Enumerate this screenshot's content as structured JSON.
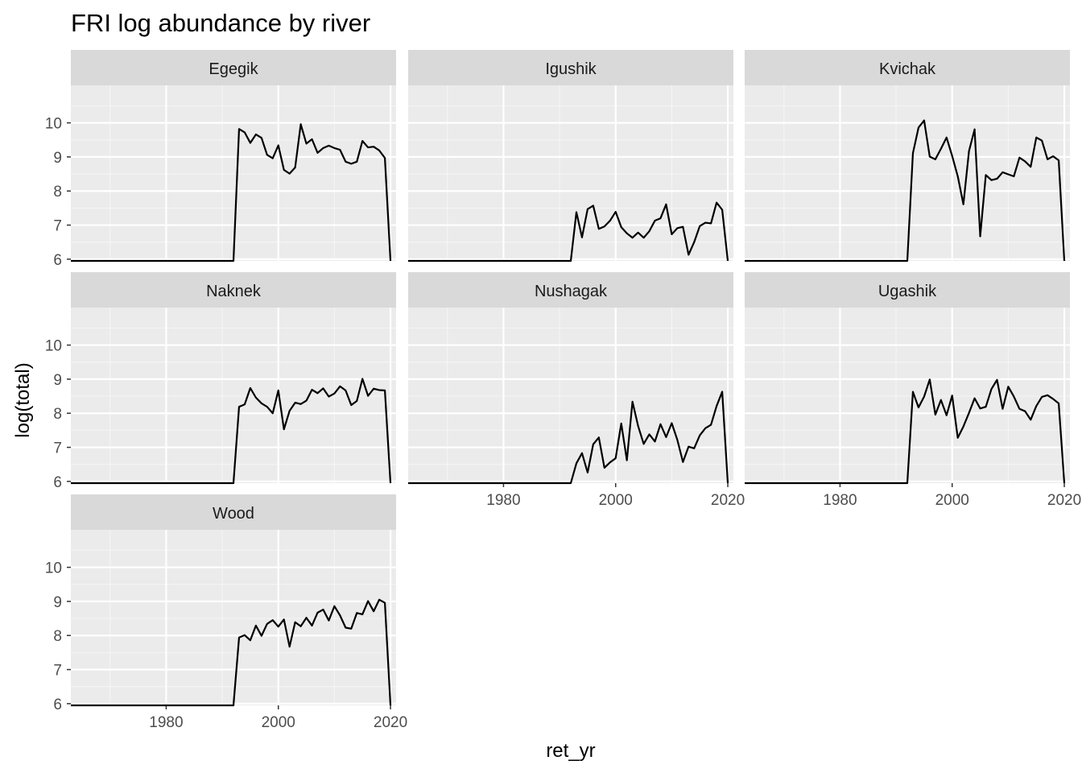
{
  "chart_data": {
    "type": "line",
    "title": "FRI log abundance by river",
    "xlabel": "ret_yr",
    "ylabel": "log(total)",
    "xlim": [
      1963,
      2021
    ],
    "ylim": [
      5.95,
      11.1
    ],
    "x_ticks": [
      1980,
      2000,
      2020
    ],
    "y_ticks": [
      6,
      7,
      8,
      9,
      10
    ],
    "grid": true,
    "line_color": "#000000",
    "panel_background": "#ebebeb",
    "strip_background": "#d9d9d9",
    "grid_color": "#ffffff",
    "panels": [
      {
        "name": "Egegik",
        "points": [
          [
            1963,
            5.95
          ],
          [
            1992,
            5.95
          ],
          [
            1993,
            9.82
          ],
          [
            1994,
            9.72
          ],
          [
            1995,
            9.41
          ],
          [
            1996,
            9.66
          ],
          [
            1997,
            9.56
          ],
          [
            1998,
            9.06
          ],
          [
            1999,
            8.96
          ],
          [
            2000,
            9.34
          ],
          [
            2001,
            8.62
          ],
          [
            2002,
            8.51
          ],
          [
            2003,
            8.69
          ],
          [
            2004,
            9.96
          ],
          [
            2005,
            9.39
          ],
          [
            2006,
            9.52
          ],
          [
            2007,
            9.12
          ],
          [
            2008,
            9.26
          ],
          [
            2009,
            9.33
          ],
          [
            2010,
            9.26
          ],
          [
            2011,
            9.21
          ],
          [
            2012,
            8.86
          ],
          [
            2013,
            8.8
          ],
          [
            2014,
            8.86
          ],
          [
            2015,
            9.47
          ],
          [
            2016,
            9.28
          ],
          [
            2017,
            9.3
          ],
          [
            2018,
            9.19
          ],
          [
            2019,
            8.97
          ],
          [
            2020,
            5.95
          ]
        ]
      },
      {
        "name": "Igushik",
        "points": [
          [
            1963,
            5.95
          ],
          [
            1992,
            5.95
          ],
          [
            1993,
            7.38
          ],
          [
            1994,
            6.64
          ],
          [
            1995,
            7.47
          ],
          [
            1996,
            7.57
          ],
          [
            1997,
            6.89
          ],
          [
            1998,
            6.96
          ],
          [
            1999,
            7.13
          ],
          [
            2000,
            7.39
          ],
          [
            2001,
            6.94
          ],
          [
            2002,
            6.76
          ],
          [
            2003,
            6.63
          ],
          [
            2004,
            6.78
          ],
          [
            2005,
            6.63
          ],
          [
            2006,
            6.82
          ],
          [
            2007,
            7.13
          ],
          [
            2008,
            7.2
          ],
          [
            2009,
            7.61
          ],
          [
            2010,
            6.73
          ],
          [
            2011,
            6.91
          ],
          [
            2012,
            6.95
          ],
          [
            2013,
            6.13
          ],
          [
            2014,
            6.5
          ],
          [
            2015,
            6.97
          ],
          [
            2016,
            7.07
          ],
          [
            2017,
            7.05
          ],
          [
            2018,
            7.66
          ],
          [
            2019,
            7.45
          ],
          [
            2020,
            5.95
          ]
        ]
      },
      {
        "name": "Kvichak",
        "points": [
          [
            1963,
            5.95
          ],
          [
            1992,
            5.95
          ],
          [
            1993,
            9.11
          ],
          [
            1994,
            9.86
          ],
          [
            1995,
            10.07
          ],
          [
            1996,
            9.01
          ],
          [
            1997,
            8.93
          ],
          [
            1998,
            9.24
          ],
          [
            1999,
            9.57
          ],
          [
            2000,
            9.03
          ],
          [
            2001,
            8.43
          ],
          [
            2002,
            7.61
          ],
          [
            2003,
            9.17
          ],
          [
            2004,
            9.81
          ],
          [
            2005,
            6.67
          ],
          [
            2006,
            8.47
          ],
          [
            2007,
            8.32
          ],
          [
            2008,
            8.36
          ],
          [
            2009,
            8.55
          ],
          [
            2010,
            8.49
          ],
          [
            2011,
            8.43
          ],
          [
            2012,
            8.98
          ],
          [
            2013,
            8.87
          ],
          [
            2014,
            8.71
          ],
          [
            2015,
            9.57
          ],
          [
            2016,
            9.48
          ],
          [
            2017,
            8.93
          ],
          [
            2018,
            9.02
          ],
          [
            2019,
            8.9
          ],
          [
            2020,
            5.95
          ]
        ]
      },
      {
        "name": "Naknek",
        "points": [
          [
            1963,
            5.95
          ],
          [
            1992,
            5.95
          ],
          [
            1993,
            8.19
          ],
          [
            1994,
            8.26
          ],
          [
            1995,
            8.74
          ],
          [
            1996,
            8.46
          ],
          [
            1997,
            8.29
          ],
          [
            1998,
            8.19
          ],
          [
            1999,
            8.0
          ],
          [
            2000,
            8.67
          ],
          [
            2001,
            7.53
          ],
          [
            2002,
            8.07
          ],
          [
            2003,
            8.31
          ],
          [
            2004,
            8.27
          ],
          [
            2005,
            8.37
          ],
          [
            2006,
            8.69
          ],
          [
            2007,
            8.59
          ],
          [
            2008,
            8.73
          ],
          [
            2009,
            8.49
          ],
          [
            2010,
            8.58
          ],
          [
            2011,
            8.79
          ],
          [
            2012,
            8.67
          ],
          [
            2013,
            8.24
          ],
          [
            2014,
            8.36
          ],
          [
            2015,
            9.01
          ],
          [
            2016,
            8.51
          ],
          [
            2017,
            8.72
          ],
          [
            2018,
            8.68
          ],
          [
            2019,
            8.67
          ],
          [
            2020,
            5.95
          ]
        ]
      },
      {
        "name": "Nushagak",
        "points": [
          [
            1963,
            5.95
          ],
          [
            1992,
            5.95
          ],
          [
            1993,
            6.53
          ],
          [
            1994,
            6.83
          ],
          [
            1995,
            6.26
          ],
          [
            1996,
            7.09
          ],
          [
            1997,
            7.29
          ],
          [
            1998,
            6.4
          ],
          [
            1999,
            6.56
          ],
          [
            2000,
            6.68
          ],
          [
            2001,
            7.7
          ],
          [
            2002,
            6.62
          ],
          [
            2003,
            8.34
          ],
          [
            2004,
            7.63
          ],
          [
            2005,
            7.1
          ],
          [
            2006,
            7.38
          ],
          [
            2007,
            7.17
          ],
          [
            2008,
            7.68
          ],
          [
            2009,
            7.3
          ],
          [
            2010,
            7.71
          ],
          [
            2011,
            7.22
          ],
          [
            2012,
            6.57
          ],
          [
            2013,
            7.02
          ],
          [
            2014,
            6.97
          ],
          [
            2015,
            7.35
          ],
          [
            2016,
            7.56
          ],
          [
            2017,
            7.66
          ],
          [
            2018,
            8.21
          ],
          [
            2019,
            8.63
          ],
          [
            2020,
            5.95
          ]
        ]
      },
      {
        "name": "Ugashik",
        "points": [
          [
            1963,
            5.95
          ],
          [
            1992,
            5.95
          ],
          [
            1993,
            8.63
          ],
          [
            1994,
            8.17
          ],
          [
            1995,
            8.49
          ],
          [
            1996,
            8.99
          ],
          [
            1997,
            7.96
          ],
          [
            1998,
            8.39
          ],
          [
            1999,
            7.94
          ],
          [
            2000,
            8.52
          ],
          [
            2001,
            7.28
          ],
          [
            2002,
            7.61
          ],
          [
            2003,
            8.01
          ],
          [
            2004,
            8.44
          ],
          [
            2005,
            8.14
          ],
          [
            2006,
            8.19
          ],
          [
            2007,
            8.71
          ],
          [
            2008,
            8.98
          ],
          [
            2009,
            8.13
          ],
          [
            2010,
            8.78
          ],
          [
            2011,
            8.49
          ],
          [
            2012,
            8.13
          ],
          [
            2013,
            8.06
          ],
          [
            2014,
            7.81
          ],
          [
            2015,
            8.21
          ],
          [
            2016,
            8.48
          ],
          [
            2017,
            8.53
          ],
          [
            2018,
            8.42
          ],
          [
            2019,
            8.29
          ],
          [
            2020,
            5.95
          ]
        ]
      },
      {
        "name": "Wood",
        "points": [
          [
            1963,
            5.95
          ],
          [
            1992,
            5.95
          ],
          [
            1993,
            7.94
          ],
          [
            1994,
            8.01
          ],
          [
            1995,
            7.86
          ],
          [
            1996,
            8.29
          ],
          [
            1997,
            7.99
          ],
          [
            1998,
            8.34
          ],
          [
            1999,
            8.45
          ],
          [
            2000,
            8.26
          ],
          [
            2001,
            8.47
          ],
          [
            2002,
            7.67
          ],
          [
            2003,
            8.39
          ],
          [
            2004,
            8.27
          ],
          [
            2005,
            8.52
          ],
          [
            2006,
            8.29
          ],
          [
            2007,
            8.67
          ],
          [
            2008,
            8.76
          ],
          [
            2009,
            8.44
          ],
          [
            2010,
            8.86
          ],
          [
            2011,
            8.59
          ],
          [
            2012,
            8.23
          ],
          [
            2013,
            8.2
          ],
          [
            2014,
            8.66
          ],
          [
            2015,
            8.62
          ],
          [
            2016,
            9.01
          ],
          [
            2017,
            8.71
          ],
          [
            2018,
            9.05
          ],
          [
            2019,
            8.96
          ],
          [
            2020,
            5.95
          ]
        ]
      }
    ]
  }
}
